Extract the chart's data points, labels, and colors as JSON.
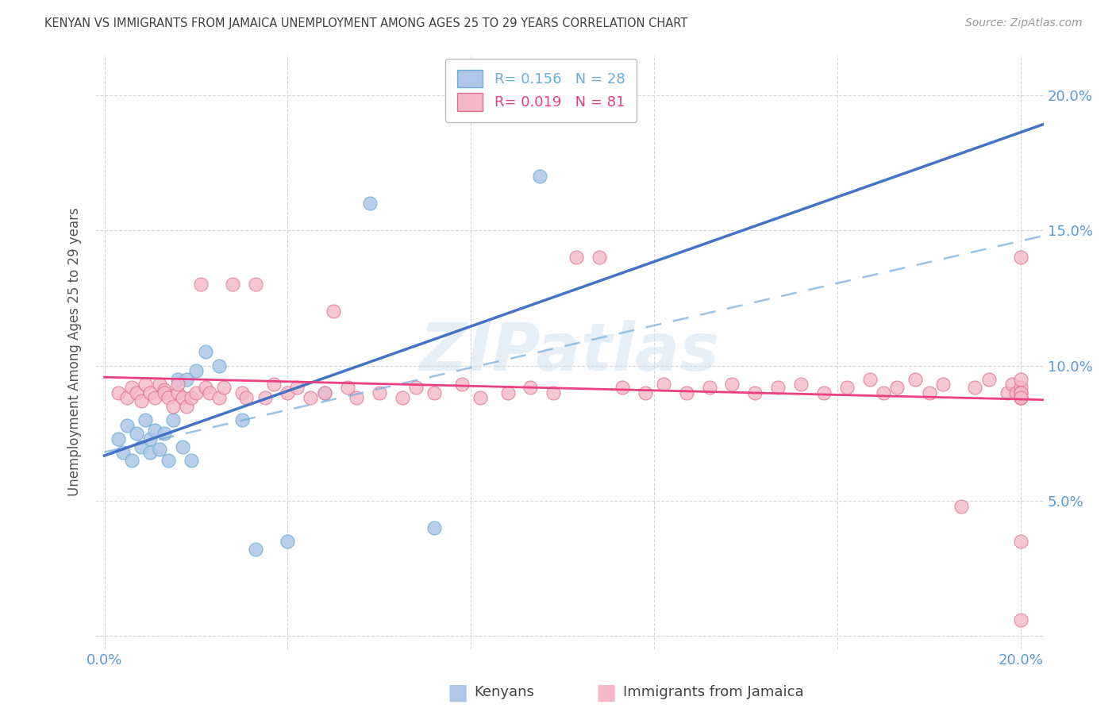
{
  "title": "KENYAN VS IMMIGRANTS FROM JAMAICA UNEMPLOYMENT AMONG AGES 25 TO 29 YEARS CORRELATION CHART",
  "source": "Source: ZipAtlas.com",
  "ylabel": "Unemployment Among Ages 25 to 29 years",
  "xlim": [
    -0.002,
    0.205
  ],
  "ylim": [
    -0.005,
    0.215
  ],
  "color_kenya": "#aec6e8",
  "color_jamaica": "#f5b8c8",
  "edge_kenya": "#6aaed6",
  "edge_jamaica": "#e07090",
  "line_kenya_solid": "#4472c4",
  "line_kenya_dash": "#7fb3e0",
  "line_jamaica": "#e84080",
  "R1": "0.156",
  "N1": "28",
  "R2": "0.019",
  "N2": "81",
  "label_kenya": "Kenyans",
  "label_jamaica": "Immigrants from Jamaica",
  "title_color": "#404040",
  "tick_color": "#5b9bd5",
  "watermark": "ZIPatlas",
  "kenya_x": [
    0.003,
    0.004,
    0.005,
    0.006,
    0.007,
    0.008,
    0.009,
    0.01,
    0.01,
    0.011,
    0.012,
    0.013,
    0.014,
    0.015,
    0.016,
    0.017,
    0.018,
    0.019,
    0.02,
    0.022,
    0.025,
    0.03,
    0.033,
    0.04,
    0.048,
    0.058,
    0.072,
    0.095
  ],
  "kenya_y": [
    0.073,
    0.068,
    0.078,
    0.065,
    0.075,
    0.07,
    0.08,
    0.068,
    0.073,
    0.076,
    0.069,
    0.075,
    0.065,
    0.08,
    0.095,
    0.07,
    0.095,
    0.065,
    0.098,
    0.105,
    0.1,
    0.08,
    0.032,
    0.035,
    0.09,
    0.16,
    0.04,
    0.17
  ],
  "jamaica_x": [
    0.003,
    0.005,
    0.006,
    0.007,
    0.008,
    0.009,
    0.01,
    0.011,
    0.012,
    0.013,
    0.013,
    0.014,
    0.015,
    0.016,
    0.016,
    0.017,
    0.018,
    0.019,
    0.02,
    0.021,
    0.022,
    0.023,
    0.025,
    0.026,
    0.028,
    0.03,
    0.031,
    0.033,
    0.035,
    0.037,
    0.04,
    0.042,
    0.045,
    0.048,
    0.05,
    0.053,
    0.055,
    0.06,
    0.065,
    0.068,
    0.072,
    0.078,
    0.082,
    0.088,
    0.093,
    0.098,
    0.103,
    0.108,
    0.113,
    0.118,
    0.122,
    0.127,
    0.132,
    0.137,
    0.142,
    0.147,
    0.152,
    0.157,
    0.162,
    0.167,
    0.17,
    0.173,
    0.177,
    0.18,
    0.183,
    0.187,
    0.19,
    0.193,
    0.197,
    0.198,
    0.199,
    0.2,
    0.2,
    0.2,
    0.2,
    0.2,
    0.2,
    0.2,
    0.2,
    0.2,
    0.2
  ],
  "jamaica_y": [
    0.09,
    0.088,
    0.092,
    0.09,
    0.087,
    0.093,
    0.09,
    0.088,
    0.093,
    0.091,
    0.09,
    0.088,
    0.085,
    0.09,
    0.093,
    0.088,
    0.085,
    0.088,
    0.09,
    0.13,
    0.092,
    0.09,
    0.088,
    0.092,
    0.13,
    0.09,
    0.088,
    0.13,
    0.088,
    0.093,
    0.09,
    0.092,
    0.088,
    0.09,
    0.12,
    0.092,
    0.088,
    0.09,
    0.088,
    0.092,
    0.09,
    0.093,
    0.088,
    0.09,
    0.092,
    0.09,
    0.14,
    0.14,
    0.092,
    0.09,
    0.093,
    0.09,
    0.092,
    0.093,
    0.09,
    0.092,
    0.093,
    0.09,
    0.092,
    0.095,
    0.09,
    0.092,
    0.095,
    0.09,
    0.093,
    0.048,
    0.092,
    0.095,
    0.09,
    0.093,
    0.09,
    0.092,
    0.14,
    0.088,
    0.095,
    0.09,
    0.088,
    0.035,
    0.09,
    0.088,
    0.006
  ]
}
